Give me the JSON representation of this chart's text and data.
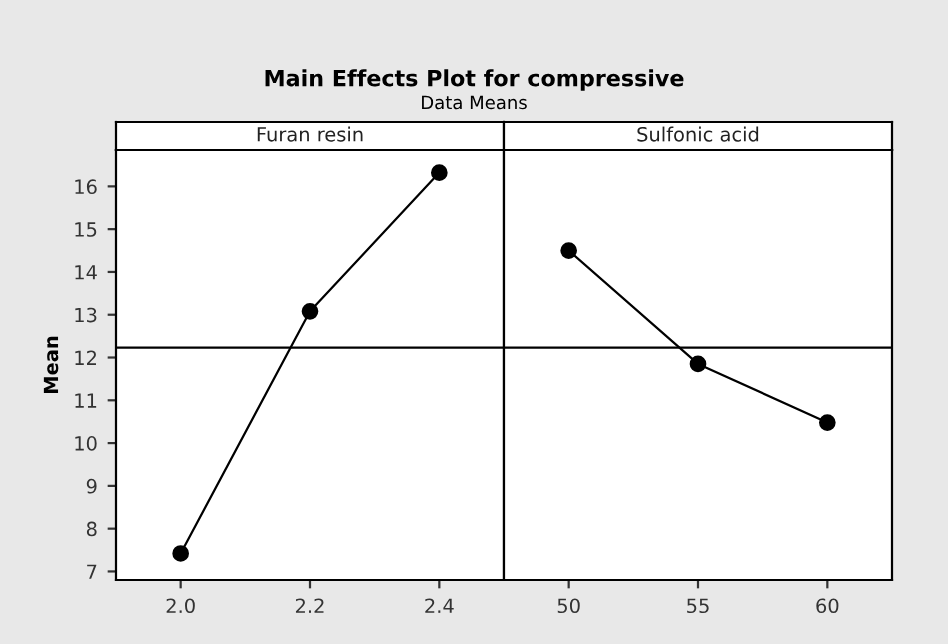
{
  "chart_data": [
    {
      "type": "line",
      "title": "Furan resin",
      "ylabel": "Mean",
      "annotations": [
        "Main Effects Plot for compressive",
        "Data Means"
      ],
      "x": [
        2.0,
        2.2,
        2.4
      ],
      "series": [
        {
          "color": "#000000",
          "values": [
            7.42,
            13.08,
            16.32
          ]
        }
      ],
      "xlim": [
        1.9,
        2.5
      ],
      "xticks": [
        {
          "value": 2.0,
          "label": "2.0"
        },
        {
          "value": 2.2,
          "label": "2.2"
        },
        {
          "value": 2.4,
          "label": "2.4"
        }
      ],
      "ylim": [
        6.8,
        16.85
      ],
      "yticks": [
        7,
        8,
        9,
        10,
        11,
        12,
        13,
        14,
        15,
        16
      ],
      "ref_lines": [
        {
          "axis": "y",
          "value": 12.23,
          "color": "#000000"
        }
      ],
      "marker": "circle",
      "line_style": "solid",
      "grid": false,
      "legend": false
    },
    {
      "type": "line",
      "title": "Sulfonic acid",
      "x": [
        50,
        55,
        60
      ],
      "series": [
        {
          "color": "#000000",
          "values": [
            14.5,
            11.85,
            10.48
          ]
        }
      ],
      "xlim": [
        47.5,
        62.5
      ],
      "xticks": [
        50,
        55,
        60
      ],
      "ylim": [
        6.8,
        16.85
      ],
      "ref_lines": [
        {
          "axis": "y",
          "value": 12.23,
          "color": "#000000"
        }
      ],
      "marker": "circle",
      "line_style": "solid",
      "grid": false,
      "legend": false,
      "tick_labels": "x"
    }
  ]
}
